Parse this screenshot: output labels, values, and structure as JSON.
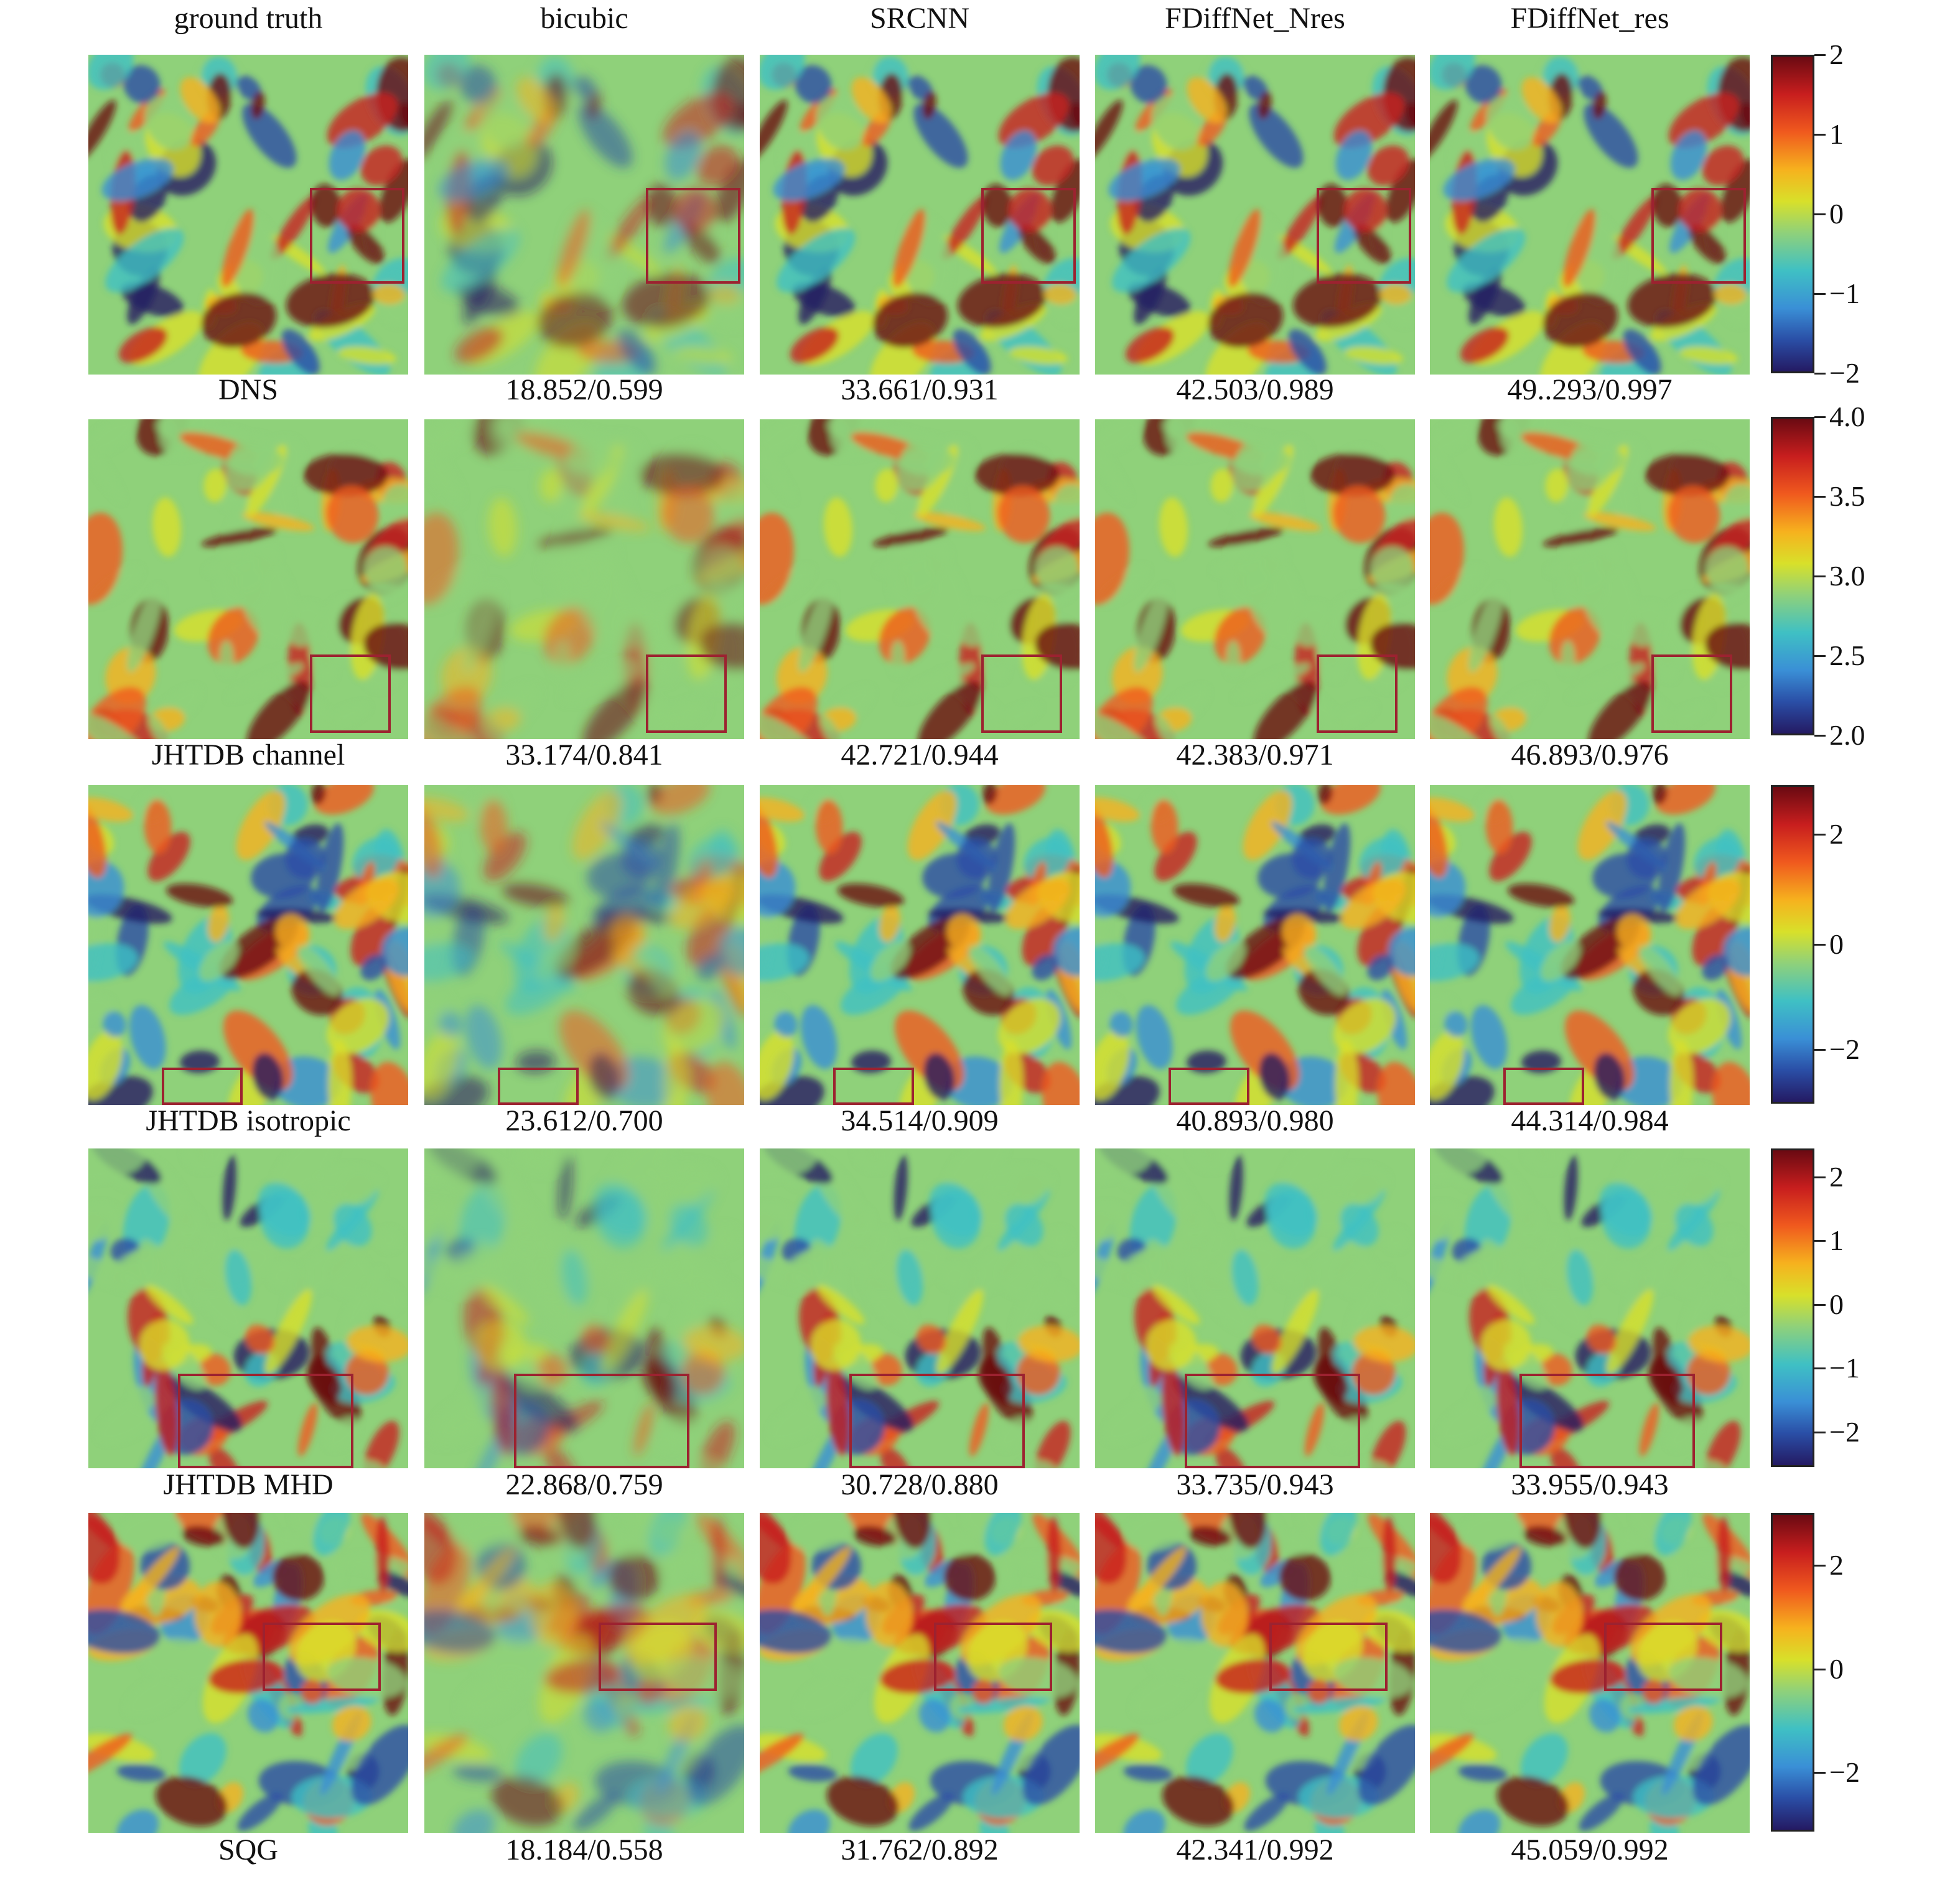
{
  "figure": {
    "columns": [
      "ground truth",
      "bicubic",
      "SRCNN",
      "FDiffNet_Nres",
      "FDiffNet_res"
    ],
    "rows": [
      {
        "dataset": "DNS",
        "scores": [
          "18.852/0.599",
          "33.661/0.931",
          "42.503/0.989",
          "49..293/0.997"
        ],
        "colorbar": [
          "2",
          "1",
          "0",
          "−1",
          "−2"
        ]
      },
      {
        "dataset": "JHTDB channel",
        "scores": [
          "33.174/0.841",
          "42.721/0.944",
          "42.383/0.971",
          "46.893/0.976"
        ],
        "colorbar": [
          "4.0",
          "3.5",
          "3.0",
          "2.5",
          "2.0"
        ]
      },
      {
        "dataset": "JHTDB isotropic",
        "scores": [
          "23.612/0.700",
          "34.514/0.909",
          "40.893/0.980",
          "44.314/0.984"
        ],
        "colorbar": [
          "2",
          "0",
          "−2"
        ]
      },
      {
        "dataset": "JHTDB MHD",
        "scores": [
          "22.868/0.759",
          "30.728/0.880",
          "33.735/0.943",
          "33.955/0.943"
        ],
        "colorbar": [
          "2",
          "1",
          "0",
          "−1",
          "−2"
        ]
      },
      {
        "dataset": "SQG",
        "scores": [
          "18.184/0.558",
          "31.762/0.892",
          "42.341/0.992",
          "45.059/0.992"
        ],
        "colorbar": [
          "2",
          "0",
          "−2"
        ]
      }
    ],
    "colors": {
      "zoom_box": "#9c2230",
      "colormap": [
        "#241a63",
        "#2a4ea6",
        "#3a8fd6",
        "#3fc0c4",
        "#8fd17a",
        "#d8e02a",
        "#f6b21e",
        "#f05a1e",
        "#c81e1e",
        "#6a0a12"
      ]
    }
  }
}
